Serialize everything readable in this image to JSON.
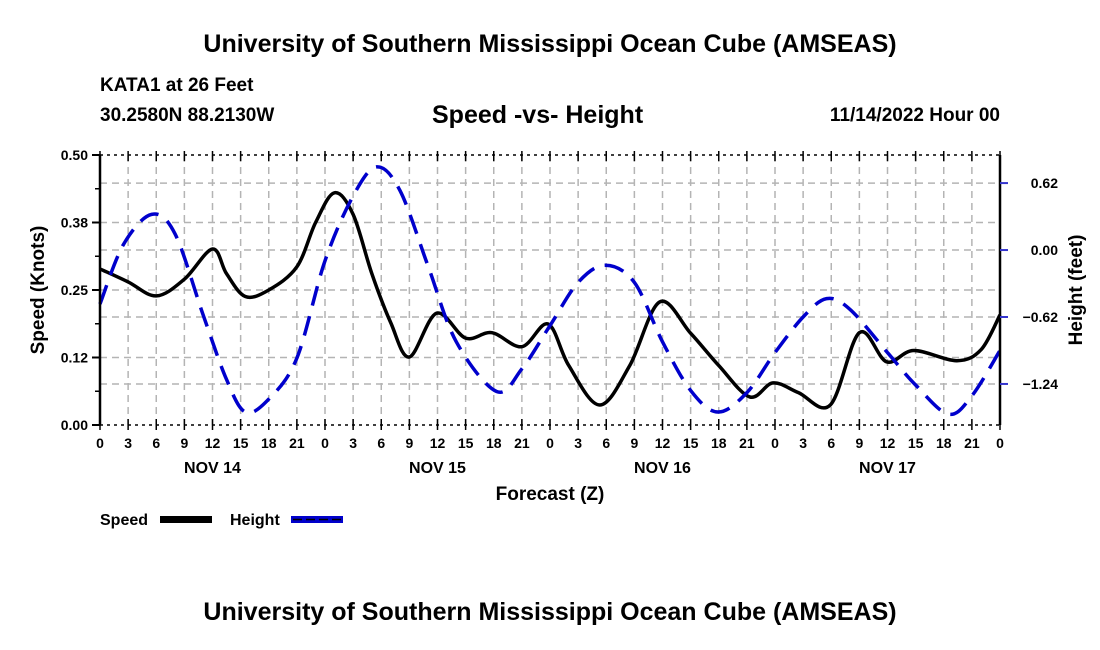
{
  "header": {
    "main_title": "University of Southern Mississippi Ocean Cube (AMSEAS)",
    "station": "KATA1 at 26 Feet",
    "coords": "30.2580N  88.2130W",
    "chart_title": "Speed -vs- Height",
    "datetime": "11/14/2022 Hour 00"
  },
  "footer": {
    "bottom_title": "University of Southern Mississippi Ocean Cube (AMSEAS)"
  },
  "chart_data": {
    "type": "line",
    "title": "Speed -vs- Height",
    "xlabel": "Forecast (Z)",
    "ylabel": "Speed (Knots)",
    "y2label": "Height (feet)",
    "xlim": [
      0,
      96
    ],
    "ylim": [
      0,
      0.5
    ],
    "y2lim": [
      -1.62,
      0.88
    ],
    "grid": true,
    "x_tick_labels": [
      "0",
      "3",
      "6",
      "9",
      "12",
      "15",
      "18",
      "21",
      "0",
      "3",
      "6",
      "9",
      "12",
      "15",
      "18",
      "21",
      "0",
      "3",
      "6",
      "9",
      "12",
      "15",
      "18",
      "21",
      "0",
      "3",
      "6",
      "9",
      "12",
      "15",
      "18",
      "21",
      "0"
    ],
    "day_labels": [
      {
        "label": "NOV 14",
        "hour": 12
      },
      {
        "label": "NOV 15",
        "hour": 36
      },
      {
        "label": "NOV 16",
        "hour": 60
      },
      {
        "label": "NOV 17",
        "hour": 84
      }
    ],
    "y_ticks": [
      {
        "value": 0.0,
        "label": "0.00"
      },
      {
        "value": 0.125,
        "label": "0.12"
      },
      {
        "value": 0.25,
        "label": "0.25"
      },
      {
        "value": 0.375,
        "label": "0.38"
      },
      {
        "value": 0.5,
        "label": "0.50"
      }
    ],
    "y2_ticks": [
      {
        "value": 0.62,
        "label": "0.62"
      },
      {
        "value": 0.0,
        "label": "0.00"
      },
      {
        "value": -0.62,
        "label": "−0.62"
      },
      {
        "value": -1.24,
        "label": "−1.24"
      }
    ],
    "legend": {
      "position": "bottom-left"
    },
    "series": [
      {
        "name": "Speed",
        "axis": "left",
        "color": "#000000",
        "style": "solid",
        "x": [
          0,
          3,
          6,
          9,
          12,
          13.5,
          15.5,
          18,
          21,
          23,
          25,
          27,
          29,
          31,
          33,
          35.9,
          39,
          41.8,
          45,
          47.8,
          50,
          53.3,
          56.5,
          59.7,
          63,
          66,
          69.3,
          71.8,
          74.5,
          77.9,
          81,
          83.9,
          86.8,
          91.4,
          94,
          96
        ],
        "values": [
          0.289,
          0.265,
          0.239,
          0.27,
          0.326,
          0.28,
          0.238,
          0.25,
          0.293,
          0.375,
          0.43,
          0.39,
          0.28,
          0.19,
          0.126,
          0.207,
          0.161,
          0.171,
          0.145,
          0.187,
          0.11,
          0.037,
          0.11,
          0.228,
          0.17,
          0.11,
          0.052,
          0.078,
          0.06,
          0.037,
          0.171,
          0.117,
          0.138,
          0.119,
          0.14,
          0.204
        ]
      },
      {
        "name": "Height",
        "axis": "right",
        "color": "#0000cc",
        "style": "dashed",
        "x": [
          0,
          2.5,
          5.5,
          8,
          11,
          13.5,
          15.5,
          18,
          21,
          24,
          27,
          29.5,
          32,
          35,
          38,
          42.3,
          45,
          48,
          51,
          53.9,
          57,
          60,
          63,
          65.9,
          69,
          72,
          75,
          77.5,
          80,
          84,
          87,
          90.5,
          93,
          96
        ],
        "values": [
          -0.5,
          0.05,
          0.33,
          0.15,
          -0.6,
          -1.2,
          -1.5,
          -1.38,
          -1.0,
          -0.1,
          0.5,
          0.77,
          0.55,
          -0.15,
          -0.85,
          -1.31,
          -1.1,
          -0.7,
          -0.3,
          -0.14,
          -0.3,
          -0.85,
          -1.3,
          -1.5,
          -1.32,
          -0.95,
          -0.62,
          -0.45,
          -0.55,
          -0.95,
          -1.25,
          -1.52,
          -1.35,
          -0.93
        ]
      }
    ]
  }
}
